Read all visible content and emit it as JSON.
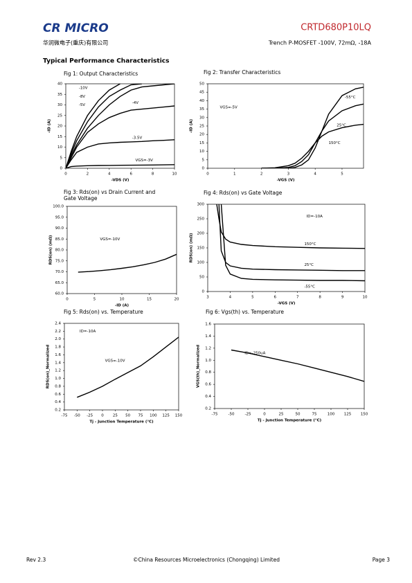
{
  "header": {
    "logo": "CR MICRO",
    "company": "华润微电子(重庆)有限公司",
    "part": "CRTD680P10LQ",
    "description": "Trench P-MOSFET -100V, 72mΩ, -18A"
  },
  "section_title": "Typical Performance Characteristics",
  "chart_data": [
    {
      "type": "line",
      "title": "Fig 1: Output Characteristics",
      "x_label": "-VDS (V)",
      "y_label": "-ID (A)",
      "x": [
        0,
        0.5,
        1,
        2,
        3,
        4,
        5,
        6,
        7,
        8,
        9,
        10
      ],
      "series": [
        {
          "name": "-10V",
          "color": "#000000",
          "values": [
            0,
            8,
            15,
            25,
            32,
            37,
            40,
            null,
            null,
            null,
            null,
            null
          ]
        },
        {
          "name": "-8V",
          "color": "#000000",
          "values": [
            0,
            7,
            13,
            22,
            29,
            34,
            37,
            39.5,
            40,
            null,
            null,
            null
          ]
        },
        {
          "name": "-5V",
          "color": "#000000",
          "values": [
            0,
            6,
            11,
            19,
            25,
            30,
            34,
            37,
            38.5,
            39,
            39.5,
            40
          ]
        },
        {
          "name": "-4V",
          "color": "#000000",
          "values": [
            0,
            5,
            10,
            17,
            21,
            24,
            26,
            27.5,
            28,
            28.5,
            29,
            29.5
          ]
        },
        {
          "name": "-3.5V",
          "color": "#000000",
          "values": [
            0,
            4,
            7.5,
            10,
            11.5,
            12,
            12.3,
            12.5,
            12.7,
            13,
            13.2,
            13.5
          ]
        },
        {
          "name": "VGS=-3V",
          "color": "#000000",
          "values": [
            0,
            0.8,
            1,
            1.2,
            1.3,
            1.35,
            1.4,
            1.45,
            1.5,
            1.55,
            1.6,
            1.7
          ]
        }
      ],
      "annotations": [
        "-10V",
        "-8V",
        "-5V",
        "-4V",
        "-3.5V",
        "VGS=-3V"
      ],
      "xlim": [
        0,
        10
      ],
      "xticks": [
        0,
        2,
        4,
        6,
        8,
        10
      ],
      "ylim": [
        0,
        40
      ],
      "yticks": [
        0,
        5,
        10,
        15,
        20,
        25,
        30,
        35,
        40
      ]
    },
    {
      "type": "line",
      "title": "Fig 2: Transfer Characteristics",
      "x_label": "-VGS (V)",
      "y_label": "-ID (A)",
      "x": [
        2,
        2.5,
        3,
        3.25,
        3.5,
        3.75,
        4,
        4.25,
        4.5,
        5,
        5.5,
        5.8
      ],
      "series": [
        {
          "name": "-55°C",
          "color": "#000000",
          "values": [
            0,
            0,
            0,
            0.5,
            2,
            5,
            12,
            22,
            32,
            43,
            47,
            48
          ]
        },
        {
          "name": "25°C",
          "color": "#000000",
          "values": [
            0,
            0,
            0.5,
            1.5,
            4,
            8,
            15,
            22,
            28,
            34,
            37,
            38
          ]
        },
        {
          "name": "150°C",
          "color": "#000000",
          "values": [
            0,
            0.3,
            1.5,
            3,
            6,
            10,
            15,
            19,
            21.5,
            24,
            25.5,
            26
          ]
        }
      ],
      "annotations": [
        "VGS=-5V",
        "-55°C",
        "25°C",
        "150°C"
      ],
      "xlim": [
        0,
        5.8
      ],
      "xticks": [
        0,
        1,
        2,
        3,
        4,
        5
      ],
      "ylim": [
        0,
        50
      ],
      "yticks": [
        0,
        5,
        10,
        15,
        20,
        25,
        30,
        35,
        40,
        45,
        50
      ]
    },
    {
      "type": "line",
      "title": "Fig 3: Rds(on) vs Drain Current and Gate Voltage",
      "x_label": "-ID (A)",
      "y_label": "RDS(on) (mΩ)",
      "x": [
        2,
        4,
        6,
        8,
        10,
        12,
        14,
        16,
        18,
        20
      ],
      "series": [
        {
          "name": "VGS=-10V",
          "color": "#000000",
          "values": [
            69.8,
            70.1,
            70.5,
            71,
            71.6,
            72.3,
            73.2,
            74.3,
            75.8,
            78
          ]
        }
      ],
      "annotations": [
        "VGS=-10V"
      ],
      "xlim": [
        0,
        20
      ],
      "xticks": [
        0,
        5,
        10,
        15,
        20
      ],
      "ylim": [
        60,
        100
      ],
      "yticks": [
        {
          "value": 60,
          "label": "60.0"
        },
        {
          "value": 65,
          "label": "65.0"
        },
        {
          "value": 70,
          "label": "70.0"
        },
        {
          "value": 75,
          "label": "75.0"
        },
        {
          "value": 80,
          "label": "80.0"
        },
        {
          "value": 85,
          "label": "85.0"
        },
        {
          "value": 90,
          "label": "90.0"
        },
        {
          "value": 95,
          "label": "95.0"
        },
        {
          "value": 100,
          "label": "100.0"
        }
      ]
    },
    {
      "type": "line",
      "title": "Fig 4: Rds(on) vs Gate Voltage",
      "x_label": "-VGS (V)",
      "y_label": "RDS(on) (mΩ)",
      "x": [
        3.4,
        3.5,
        3.6,
        3.8,
        4,
        4.5,
        5,
        6,
        7,
        8,
        9,
        10
      ],
      "series": [
        {
          "name": "150°C",
          "color": "#000000",
          "values": [
            300,
            250,
            205,
            180,
            170,
            162,
            158,
            154,
            152,
            150,
            149,
            148
          ]
        },
        {
          "name": "25°C",
          "color": "#000000",
          "values": [
            null,
            300,
            140,
            100,
            88,
            80,
            77,
            75,
            74,
            73,
            72,
            72
          ]
        },
        {
          "name": "-55°C",
          "color": "#000000",
          "values": [
            null,
            null,
            300,
            90,
            60,
            45,
            42,
            40,
            39,
            38,
            38,
            37
          ]
        }
      ],
      "annotations": [
        "ID=-10A",
        "150°C",
        "25°C",
        "-55°C"
      ],
      "xlim": [
        3,
        10
      ],
      "xticks": [
        3,
        4,
        5,
        6,
        7,
        8,
        9,
        10
      ],
      "ylim": [
        0,
        300
      ],
      "yticks": [
        0,
        50,
        100,
        150,
        200,
        250,
        300
      ]
    },
    {
      "type": "line",
      "title": "Fig 5: Rds(on) vs. Temperature",
      "x_label": "Tj - Junction Temperature (°C)",
      "y_label": "RDS(on)_Normalized",
      "x": [
        -50,
        -25,
        0,
        25,
        50,
        75,
        100,
        125,
        150
      ],
      "series": [
        {
          "name": "RDS(on)",
          "color": "#000000",
          "values": [
            0.52,
            0.65,
            0.8,
            0.98,
            1.15,
            1.32,
            1.55,
            1.8,
            2.05
          ]
        }
      ],
      "annotations": [
        "ID=-10A",
        "VGS=-10V"
      ],
      "xlim": [
        -75,
        150
      ],
      "xticks": [
        -75,
        -50,
        -25,
        0,
        25,
        50,
        75,
        100,
        125,
        150
      ],
      "ylim": [
        0.2,
        2.4
      ],
      "yticks": [
        0.2,
        0.4,
        0.6,
        0.8,
        {
          "value": 1,
          "label": "1.0"
        },
        1.2,
        1.4,
        1.6,
        1.8,
        {
          "value": 2,
          "label": "2.0"
        },
        2.2,
        2.4
      ]
    },
    {
      "type": "line",
      "title": "Fig 6: Vgs(th) vs. Temperature",
      "x_label": "Tj - Junction Temperature (°C)",
      "y_label": "VGS(th)_Normalized",
      "x": [
        -50,
        -25,
        0,
        25,
        50,
        75,
        100,
        125,
        150
      ],
      "series": [
        {
          "name": "VGS(th)",
          "color": "#000000",
          "values": [
            1.17,
            1.12,
            1.06,
            1,
            0.94,
            0.87,
            0.8,
            0.73,
            0.65
          ]
        }
      ],
      "annotations": [
        "ID=-250uA"
      ],
      "xlim": [
        -75,
        150
      ],
      "xticks": [
        -75,
        -50,
        -25,
        0,
        25,
        50,
        75,
        100,
        125,
        150
      ],
      "ylim": [
        0.2,
        1.6
      ],
      "yticks": [
        0.2,
        0.4,
        0.6,
        0.8,
        {
          "value": 1,
          "label": "1.0"
        },
        1.2,
        1.4,
        1.6
      ]
    }
  ],
  "footer": {
    "rev": "Rev 2.3",
    "copyright": "©China Resources Microelectronics (Chongqing) Limited",
    "page": "Page 3"
  }
}
